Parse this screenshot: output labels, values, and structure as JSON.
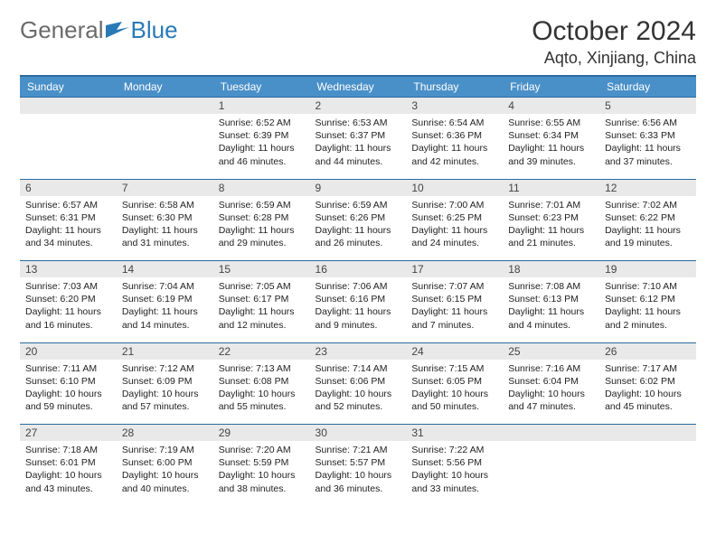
{
  "logo": {
    "general": "General",
    "blue": "Blue"
  },
  "title": "October 2024",
  "location": "Aqto, Xinjiang, China",
  "colors": {
    "header_bg": "#4a90c8",
    "header_border": "#2a6a9e",
    "daynum_bg": "#e9e9e9",
    "text": "#222222",
    "logo_gray": "#6b6b6b",
    "logo_blue": "#2a7ab8"
  },
  "weekdays": [
    "Sunday",
    "Monday",
    "Tuesday",
    "Wednesday",
    "Thursday",
    "Friday",
    "Saturday"
  ],
  "weeks": [
    [
      null,
      null,
      {
        "n": "1",
        "sr": "6:52 AM",
        "ss": "6:39 PM",
        "dl": "11 hours and 46 minutes."
      },
      {
        "n": "2",
        "sr": "6:53 AM",
        "ss": "6:37 PM",
        "dl": "11 hours and 44 minutes."
      },
      {
        "n": "3",
        "sr": "6:54 AM",
        "ss": "6:36 PM",
        "dl": "11 hours and 42 minutes."
      },
      {
        "n": "4",
        "sr": "6:55 AM",
        "ss": "6:34 PM",
        "dl": "11 hours and 39 minutes."
      },
      {
        "n": "5",
        "sr": "6:56 AM",
        "ss": "6:33 PM",
        "dl": "11 hours and 37 minutes."
      }
    ],
    [
      {
        "n": "6",
        "sr": "6:57 AM",
        "ss": "6:31 PM",
        "dl": "11 hours and 34 minutes."
      },
      {
        "n": "7",
        "sr": "6:58 AM",
        "ss": "6:30 PM",
        "dl": "11 hours and 31 minutes."
      },
      {
        "n": "8",
        "sr": "6:59 AM",
        "ss": "6:28 PM",
        "dl": "11 hours and 29 minutes."
      },
      {
        "n": "9",
        "sr": "6:59 AM",
        "ss": "6:26 PM",
        "dl": "11 hours and 26 minutes."
      },
      {
        "n": "10",
        "sr": "7:00 AM",
        "ss": "6:25 PM",
        "dl": "11 hours and 24 minutes."
      },
      {
        "n": "11",
        "sr": "7:01 AM",
        "ss": "6:23 PM",
        "dl": "11 hours and 21 minutes."
      },
      {
        "n": "12",
        "sr": "7:02 AM",
        "ss": "6:22 PM",
        "dl": "11 hours and 19 minutes."
      }
    ],
    [
      {
        "n": "13",
        "sr": "7:03 AM",
        "ss": "6:20 PM",
        "dl": "11 hours and 16 minutes."
      },
      {
        "n": "14",
        "sr": "7:04 AM",
        "ss": "6:19 PM",
        "dl": "11 hours and 14 minutes."
      },
      {
        "n": "15",
        "sr": "7:05 AM",
        "ss": "6:17 PM",
        "dl": "11 hours and 12 minutes."
      },
      {
        "n": "16",
        "sr": "7:06 AM",
        "ss": "6:16 PM",
        "dl": "11 hours and 9 minutes."
      },
      {
        "n": "17",
        "sr": "7:07 AM",
        "ss": "6:15 PM",
        "dl": "11 hours and 7 minutes."
      },
      {
        "n": "18",
        "sr": "7:08 AM",
        "ss": "6:13 PM",
        "dl": "11 hours and 4 minutes."
      },
      {
        "n": "19",
        "sr": "7:10 AM",
        "ss": "6:12 PM",
        "dl": "11 hours and 2 minutes."
      }
    ],
    [
      {
        "n": "20",
        "sr": "7:11 AM",
        "ss": "6:10 PM",
        "dl": "10 hours and 59 minutes."
      },
      {
        "n": "21",
        "sr": "7:12 AM",
        "ss": "6:09 PM",
        "dl": "10 hours and 57 minutes."
      },
      {
        "n": "22",
        "sr": "7:13 AM",
        "ss": "6:08 PM",
        "dl": "10 hours and 55 minutes."
      },
      {
        "n": "23",
        "sr": "7:14 AM",
        "ss": "6:06 PM",
        "dl": "10 hours and 52 minutes."
      },
      {
        "n": "24",
        "sr": "7:15 AM",
        "ss": "6:05 PM",
        "dl": "10 hours and 50 minutes."
      },
      {
        "n": "25",
        "sr": "7:16 AM",
        "ss": "6:04 PM",
        "dl": "10 hours and 47 minutes."
      },
      {
        "n": "26",
        "sr": "7:17 AM",
        "ss": "6:02 PM",
        "dl": "10 hours and 45 minutes."
      }
    ],
    [
      {
        "n": "27",
        "sr": "7:18 AM",
        "ss": "6:01 PM",
        "dl": "10 hours and 43 minutes."
      },
      {
        "n": "28",
        "sr": "7:19 AM",
        "ss": "6:00 PM",
        "dl": "10 hours and 40 minutes."
      },
      {
        "n": "29",
        "sr": "7:20 AM",
        "ss": "5:59 PM",
        "dl": "10 hours and 38 minutes."
      },
      {
        "n": "30",
        "sr": "7:21 AM",
        "ss": "5:57 PM",
        "dl": "10 hours and 36 minutes."
      },
      {
        "n": "31",
        "sr": "7:22 AM",
        "ss": "5:56 PM",
        "dl": "10 hours and 33 minutes."
      },
      null,
      null
    ]
  ],
  "labels": {
    "sunrise": "Sunrise:",
    "sunset": "Sunset:",
    "daylight": "Daylight:"
  }
}
